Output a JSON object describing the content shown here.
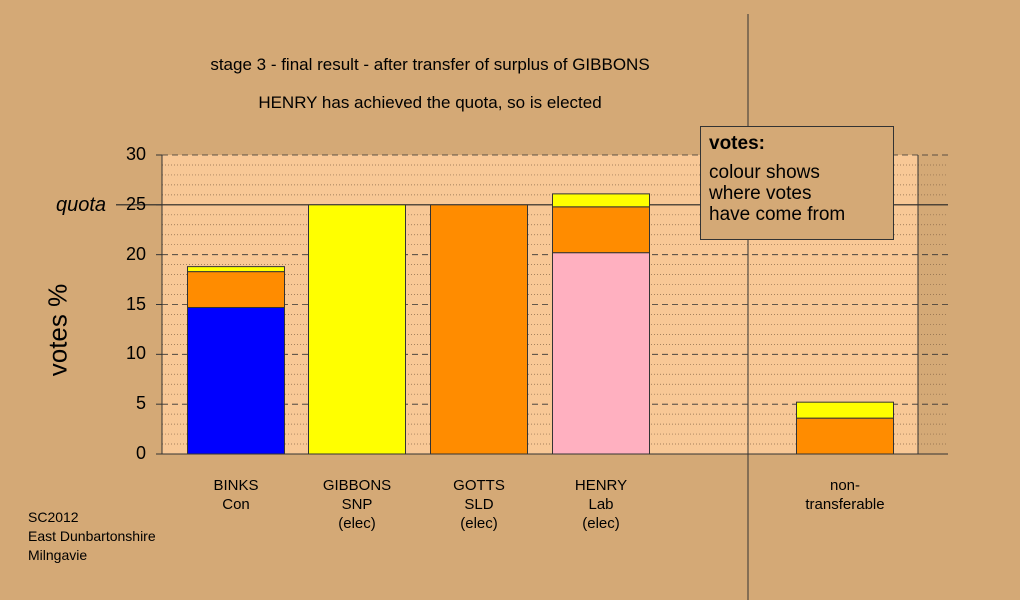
{
  "chart_data": {
    "type": "bar",
    "stacked": true,
    "title": "stage 3 - final result - after transfer of surplus of GIBBONS",
    "subtitle": "HENRY has achieved the quota, so is elected",
    "ylabel": "votes %",
    "ylim": [
      0,
      30
    ],
    "yticks": [
      0,
      5,
      10,
      15,
      20,
      25,
      30
    ],
    "quota": 25,
    "quota_label": "quota",
    "categories": [
      {
        "name": "BINKS",
        "party": "Con",
        "status": ""
      },
      {
        "name": "GIBBONS",
        "party": "SNP",
        "status": "(elec)"
      },
      {
        "name": "GOTTS",
        "party": "SLD",
        "status": "(elec)"
      },
      {
        "name": "HENRY",
        "party": "Lab",
        "status": "(elec)"
      },
      {
        "name": "non-",
        "party": "transferable",
        "status": ""
      }
    ],
    "segments": [
      [
        {
          "color": "#0000ff",
          "value": 14.7
        },
        {
          "color": "#ff8c00",
          "value": 3.6
        },
        {
          "color": "#ffff00",
          "value": 0.5
        }
      ],
      [
        {
          "color": "#ffff00",
          "value": 25.0
        }
      ],
      [
        {
          "color": "#ff8c00",
          "value": 25.0
        }
      ],
      [
        {
          "color": "#ffb0c0",
          "value": 20.2
        },
        {
          "color": "#ff8c00",
          "value": 4.6
        },
        {
          "color": "#ffff00",
          "value": 1.3
        }
      ],
      [
        {
          "color": "#ff8c00",
          "value": 3.6
        },
        {
          "color": "#ffff00",
          "value": 1.6
        }
      ]
    ],
    "grid": true
  },
  "legend": {
    "title": "votes:",
    "lines": [
      "colour shows",
      "where votes",
      "have come from"
    ]
  },
  "footer": [
    "SC2012",
    "East Dunbartonshire",
    "Milngavie"
  ]
}
